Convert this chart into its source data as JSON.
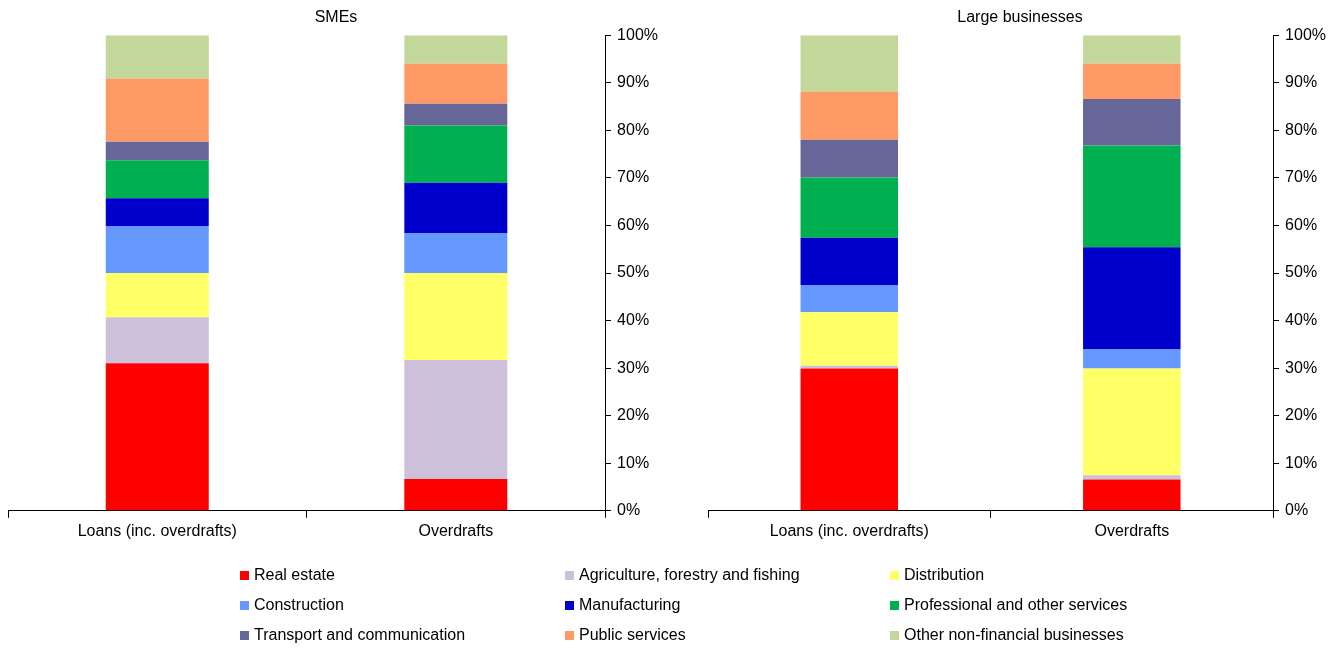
{
  "chart_data": [
    {
      "type": "bar",
      "title": "SMEs",
      "stacked": true,
      "categories": [
        "Loans (inc. overdrafts)",
        "Overdrafts"
      ],
      "ylim": [
        0,
        100
      ],
      "yticks": [
        {
          "value": 0,
          "label": "0%"
        },
        {
          "value": 10,
          "label": "10%"
        },
        {
          "value": 20,
          "label": "20%"
        },
        {
          "value": 30,
          "label": "30%"
        },
        {
          "value": 40,
          "label": "40%"
        },
        {
          "value": 50,
          "label": "50%"
        },
        {
          "value": 60,
          "label": "60%"
        },
        {
          "value": 70,
          "label": "70%"
        },
        {
          "value": 80,
          "label": "80%"
        },
        {
          "value": 90,
          "label": "90%"
        },
        {
          "value": 100,
          "label": "100%"
        }
      ],
      "grid": false,
      "legend": "bottom",
      "series": [
        {
          "name": "Real estate",
          "color": "#ff0000",
          "values": [
            31.0,
            6.7
          ]
        },
        {
          "name": "Agriculture, forestry and fishing",
          "color": "#ccc0da",
          "values": [
            9.7,
            25.0
          ]
        },
        {
          "name": "Distribution",
          "color": "#ffff66",
          "values": [
            9.3,
            18.3
          ]
        },
        {
          "name": "Construction",
          "color": "#6699ff",
          "values": [
            9.9,
            8.4
          ]
        },
        {
          "name": "Manufacturing",
          "color": "#0000cc",
          "values": [
            5.8,
            10.6
          ]
        },
        {
          "name": "Professional and other services",
          "color": "#00b050",
          "values": [
            8.0,
            12.0
          ]
        },
        {
          "name": "Transport and communication",
          "color": "#666699",
          "values": [
            3.9,
            4.6
          ]
        },
        {
          "name": "Public services",
          "color": "#ff9966",
          "values": [
            13.3,
            8.4
          ]
        },
        {
          "name": "Other non-financial businesses",
          "color": "#c4d79b",
          "values": [
            9.1,
            6.0
          ]
        }
      ]
    },
    {
      "type": "bar",
      "title": "Large businesses",
      "stacked": true,
      "categories": [
        "Loans (inc. overdrafts)",
        "Overdrafts"
      ],
      "ylim": [
        0,
        100
      ],
      "yticks": [
        {
          "value": 0,
          "label": "0%"
        },
        {
          "value": 10,
          "label": "10%"
        },
        {
          "value": 20,
          "label": "20%"
        },
        {
          "value": 30,
          "label": "30%"
        },
        {
          "value": 40,
          "label": "40%"
        },
        {
          "value": 50,
          "label": "50%"
        },
        {
          "value": 60,
          "label": "60%"
        },
        {
          "value": 70,
          "label": "70%"
        },
        {
          "value": 80,
          "label": "80%"
        },
        {
          "value": 90,
          "label": "90%"
        },
        {
          "value": 100,
          "label": "100%"
        }
      ],
      "grid": false,
      "series": [
        {
          "color": "#ff0000",
          "values": [
            29.9,
            6.6
          ]
        },
        {
          "color": "#ccc0da",
          "values": [
            0.6,
            0.9
          ]
        },
        {
          "color": "#ffff66",
          "values": [
            11.3,
            22.4
          ]
        },
        {
          "color": "#6699ff",
          "values": [
            5.7,
            4.0
          ]
        },
        {
          "color": "#0000cc",
          "values": [
            9.9,
            21.5
          ]
        },
        {
          "color": "#00b050",
          "values": [
            12.7,
            21.4
          ]
        },
        {
          "color": "#666699",
          "values": [
            7.9,
            9.8
          ]
        },
        {
          "color": "#ff9966",
          "values": [
            10.1,
            7.4
          ]
        },
        {
          "color": "#c4d79b",
          "values": [
            11.9,
            6.0
          ]
        }
      ]
    }
  ]
}
